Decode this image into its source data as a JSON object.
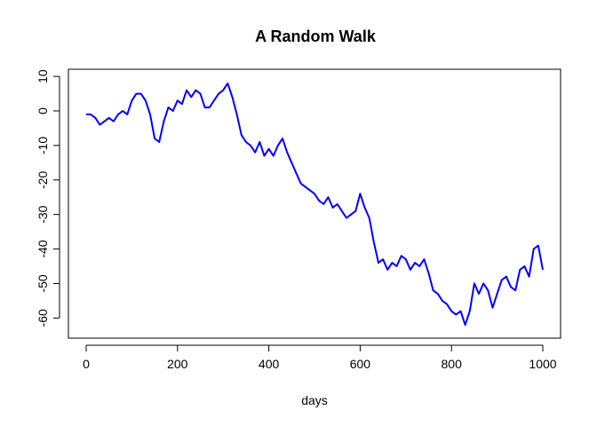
{
  "chart_data": {
    "type": "line",
    "title": "A Random Walk",
    "xlabel": "days",
    "ylabel": "",
    "xlim": [
      0,
      1000
    ],
    "ylim": [
      -63,
      9
    ],
    "xticks": [
      0,
      200,
      400,
      600,
      800,
      1000
    ],
    "yticks": [
      10,
      0,
      -10,
      -20,
      -30,
      -40,
      -50,
      -60
    ],
    "grid": false,
    "line_color": "#0000ff",
    "series": [
      {
        "x": [
          0,
          10,
          20,
          30,
          40,
          50,
          60,
          70,
          80,
          90,
          100,
          110,
          120,
          130,
          140,
          150,
          160,
          170,
          180,
          190,
          200,
          210,
          220,
          230,
          240,
          250,
          260,
          270,
          280,
          290,
          300,
          310,
          320,
          330,
          340,
          350,
          360,
          370,
          380,
          390,
          400,
          410,
          420,
          430,
          440,
          450,
          460,
          470,
          480,
          490,
          500,
          510,
          520,
          530,
          540,
          550,
          560,
          570,
          580,
          590,
          600,
          610,
          620,
          630,
          640,
          650,
          660,
          670,
          680,
          690,
          700,
          710,
          720,
          730,
          740,
          750,
          760,
          770,
          780,
          790,
          800,
          810,
          820,
          830,
          840,
          850,
          860,
          870,
          880,
          890,
          900,
          910,
          920,
          930,
          940,
          950,
          960,
          970,
          980,
          990,
          1000
        ],
        "y": [
          -1,
          -1,
          -2,
          -4,
          -3,
          -2,
          -3,
          -1,
          0,
          -1,
          3,
          5,
          5,
          3,
          -1,
          -8,
          -9,
          -3,
          1,
          0,
          3,
          2,
          6,
          4,
          6,
          5,
          1,
          1,
          3,
          5,
          6,
          8,
          4,
          -1,
          -7,
          -9,
          -10,
          -12,
          -9,
          -13,
          -11,
          -13,
          -10,
          -8,
          -12,
          -15,
          -18,
          -21,
          -22,
          -23,
          -24,
          -26,
          -27,
          -25,
          -28,
          -27,
          -29,
          -31,
          -30,
          -29,
          -24,
          -28,
          -31,
          -38,
          -44,
          -43,
          -46,
          -44,
          -45,
          -42,
          -43,
          -46,
          -44,
          -45,
          -43,
          -47,
          -52,
          -53,
          -55,
          -56,
          -58,
          -59,
          -58,
          -62,
          -58,
          -50,
          -53,
          -50,
          -52,
          -57,
          -53,
          -49,
          -48,
          -51,
          -52,
          -46,
          -45,
          -48,
          -40,
          -39,
          -46
        ]
      }
    ]
  }
}
